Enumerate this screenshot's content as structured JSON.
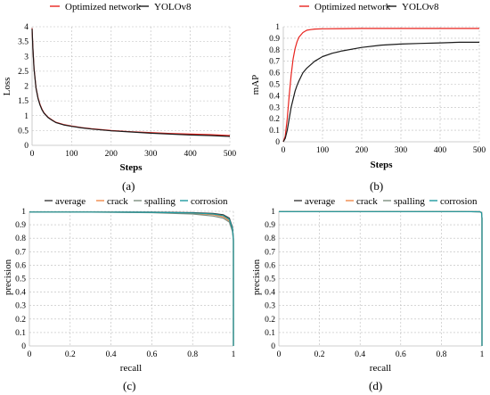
{
  "chart_data": [
    {
      "id": "a",
      "panel_label": "(a)",
      "type": "line",
      "ylabel": "Loss",
      "xlabel": "Steps",
      "xlim": [
        0,
        500
      ],
      "ylim": [
        0,
        4
      ],
      "xticks": [
        "0",
        "100",
        "200",
        "300",
        "400",
        "500"
      ],
      "yticks": [
        "0",
        "0.5",
        "1",
        "1.5",
        "2",
        "2.5",
        "3",
        "3.5",
        "4"
      ],
      "grid": true,
      "legend_position": "top",
      "series": [
        {
          "name": "Optimized network",
          "color": "#e8231e",
          "x": [
            0,
            2,
            5,
            10,
            15,
            20,
            25,
            30,
            40,
            50,
            60,
            80,
            100,
            125,
            150,
            200,
            250,
            300,
            350,
            400,
            450,
            500
          ],
          "y": [
            3.95,
            3.3,
            2.6,
            1.95,
            1.6,
            1.38,
            1.22,
            1.1,
            0.95,
            0.86,
            0.78,
            0.7,
            0.65,
            0.6,
            0.56,
            0.5,
            0.46,
            0.43,
            0.4,
            0.38,
            0.36,
            0.33
          ]
        },
        {
          "name": "YOLOv8",
          "color": "#1a1a1a",
          "x": [
            0,
            2,
            5,
            10,
            15,
            20,
            25,
            30,
            40,
            50,
            60,
            80,
            100,
            125,
            150,
            200,
            250,
            300,
            350,
            400,
            450,
            500
          ],
          "y": [
            3.93,
            3.28,
            2.58,
            1.93,
            1.58,
            1.36,
            1.2,
            1.09,
            0.94,
            0.85,
            0.77,
            0.69,
            0.64,
            0.59,
            0.55,
            0.49,
            0.45,
            0.41,
            0.38,
            0.35,
            0.33,
            0.3
          ]
        }
      ]
    },
    {
      "id": "b",
      "panel_label": "(b)",
      "type": "line",
      "ylabel": "mAP",
      "xlabel": "Steps",
      "xlim": [
        0,
        500
      ],
      "ylim": [
        0,
        1
      ],
      "xticks": [
        "0",
        "100",
        "200",
        "300",
        "400",
        "500"
      ],
      "yticks": [
        "0",
        "0.1",
        "0.2",
        "0.3",
        "0.4",
        "0.5",
        "0.6",
        "0.7",
        "0.8",
        "0.9",
        "1"
      ],
      "grid": true,
      "legend_position": "top",
      "series": [
        {
          "name": "Optimized network",
          "color": "#e8231e",
          "x": [
            0,
            5,
            10,
            15,
            20,
            25,
            30,
            35,
            40,
            50,
            60,
            70,
            80,
            100,
            150,
            200,
            300,
            400,
            500
          ],
          "y": [
            0,
            0.05,
            0.2,
            0.4,
            0.58,
            0.72,
            0.81,
            0.87,
            0.91,
            0.95,
            0.97,
            0.975,
            0.98,
            0.982,
            0.984,
            0.985,
            0.985,
            0.985,
            0.985
          ]
        },
        {
          "name": "YOLOv8",
          "color": "#1a1a1a",
          "x": [
            0,
            5,
            10,
            15,
            20,
            25,
            30,
            35,
            40,
            50,
            60,
            70,
            80,
            100,
            125,
            150,
            200,
            250,
            300,
            350,
            400,
            450,
            500
          ],
          "y": [
            0,
            0.03,
            0.1,
            0.2,
            0.3,
            0.37,
            0.44,
            0.49,
            0.53,
            0.6,
            0.64,
            0.67,
            0.7,
            0.74,
            0.77,
            0.79,
            0.82,
            0.84,
            0.85,
            0.855,
            0.86,
            0.865,
            0.865
          ]
        }
      ]
    },
    {
      "id": "c",
      "panel_label": "(c)",
      "type": "line",
      "ylabel": "precision",
      "xlabel": "recall",
      "xlim": [
        0,
        1
      ],
      "ylim": [
        0,
        1
      ],
      "xticks": [
        "0",
        "0.2",
        "0.4",
        "0.6",
        "0.8",
        "1"
      ],
      "yticks": [
        "0",
        "0.1",
        "0.2",
        "0.3",
        "0.4",
        "0.5",
        "0.6",
        "0.7",
        "0.8",
        "0.9",
        "1"
      ],
      "grid": true,
      "legend_position": "top",
      "series": [
        {
          "name": "average",
          "color": "#3a3a3a",
          "x": [
            0,
            0.3,
            0.6,
            0.8,
            0.9,
            0.95,
            0.98,
            0.995,
            1,
            1
          ],
          "y": [
            0.995,
            0.995,
            0.994,
            0.99,
            0.985,
            0.975,
            0.95,
            0.88,
            0.8,
            0
          ]
        },
        {
          "name": "crack",
          "color": "#f08a4b",
          "x": [
            0,
            0.3,
            0.6,
            0.8,
            0.9,
            0.95,
            0.98,
            0.995,
            1,
            1
          ],
          "y": [
            0.995,
            0.995,
            0.992,
            0.985,
            0.975,
            0.96,
            0.93,
            0.86,
            0.79,
            0
          ]
        },
        {
          "name": "spalling",
          "color": "#7d8e80",
          "x": [
            0,
            0.3,
            0.6,
            0.8,
            0.9,
            0.95,
            0.98,
            0.995,
            1,
            1
          ],
          "y": [
            0.995,
            0.994,
            0.99,
            0.98,
            0.965,
            0.95,
            0.92,
            0.85,
            0.78,
            0
          ]
        },
        {
          "name": "corrosion",
          "color": "#1f9aa0",
          "x": [
            0,
            0.3,
            0.6,
            0.8,
            0.9,
            0.95,
            0.98,
            0.995,
            1,
            1
          ],
          "y": [
            0.995,
            0.995,
            0.993,
            0.988,
            0.98,
            0.968,
            0.94,
            0.87,
            0.79,
            0
          ]
        }
      ]
    },
    {
      "id": "d",
      "panel_label": "(d)",
      "type": "line",
      "ylabel": "precision",
      "xlabel": "recall",
      "xlim": [
        0,
        1
      ],
      "ylim": [
        0,
        1
      ],
      "xticks": [
        "0",
        "0.2",
        "0.4",
        "0.6",
        "0.8",
        "1"
      ],
      "yticks": [
        "0",
        "0.1",
        "0.2",
        "0.3",
        "0.4",
        "0.5",
        "0.6",
        "0.7",
        "0.8",
        "0.9",
        "1"
      ],
      "grid": true,
      "legend_position": "top",
      "series": [
        {
          "name": "average",
          "color": "#3a3a3a",
          "x": [
            0,
            0.5,
            0.9,
            0.99,
            0.998,
            1,
            1
          ],
          "y": [
            0.998,
            0.998,
            0.998,
            0.997,
            0.99,
            0.95,
            0
          ]
        },
        {
          "name": "crack",
          "color": "#f08a4b",
          "x": [
            0,
            0.5,
            0.9,
            0.99,
            0.998,
            1,
            1
          ],
          "y": [
            0.998,
            0.998,
            0.998,
            0.997,
            0.99,
            0.95,
            0
          ]
        },
        {
          "name": "spalling",
          "color": "#7d8e80",
          "x": [
            0,
            0.5,
            0.9,
            0.99,
            0.998,
            1,
            1
          ],
          "y": [
            0.998,
            0.998,
            0.998,
            0.997,
            0.99,
            0.95,
            0
          ]
        },
        {
          "name": "corrosion",
          "color": "#1f9aa0",
          "x": [
            0,
            0.5,
            0.9,
            0.99,
            0.998,
            1,
            1
          ],
          "y": [
            0.998,
            0.998,
            0.998,
            0.997,
            0.99,
            0.95,
            0
          ]
        }
      ]
    }
  ]
}
